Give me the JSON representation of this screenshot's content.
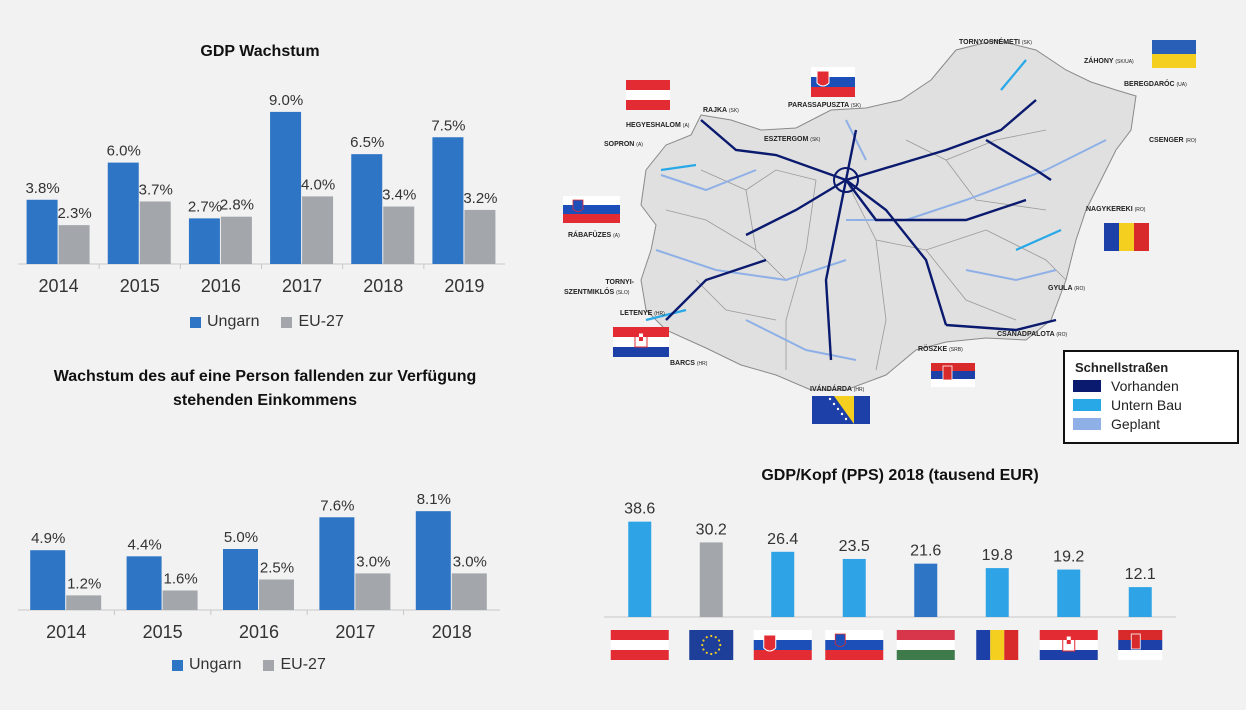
{
  "colors": {
    "ungarn": "#2e75c6",
    "eu": "#a3a7ab",
    "light": "#2ea3e6",
    "road_existing": "#0a1a6e",
    "road_building": "#29a8e8",
    "road_planned": "#8fb0e6"
  },
  "chart_data": [
    {
      "type": "bar",
      "title": "GDP Wachstum",
      "categories": [
        "2014",
        "2015",
        "2016",
        "2017",
        "2018",
        "2019"
      ],
      "series": [
        {
          "name": "Ungarn",
          "values": [
            3.8,
            6.0,
            2.7,
            9.0,
            6.5,
            7.5
          ],
          "labels": [
            "3.8%",
            "6.0%",
            "2.7%",
            "9.0%",
            "6.5%",
            "7.5%"
          ]
        },
        {
          "name": "EU-27",
          "values": [
            2.3,
            3.7,
            2.8,
            4.0,
            3.4,
            3.2
          ],
          "labels": [
            "2.3%",
            "3.7%",
            "2.8%",
            "4.0%",
            "3.4%",
            "3.2%"
          ]
        }
      ],
      "legend": "bottom"
    },
    {
      "type": "bar",
      "title": "Wachstum des auf eine Person fallenden zur Verfügung stehenden Einkommens",
      "categories": [
        "2014",
        "2015",
        "2016",
        "2017",
        "2018"
      ],
      "series": [
        {
          "name": "Ungarn",
          "values": [
            4.9,
            4.4,
            5.0,
            7.6,
            8.1
          ],
          "labels": [
            "4.9%",
            "4.4%",
            "5.0%",
            "7.6%",
            "8.1%"
          ]
        },
        {
          "name": "EU-27",
          "values": [
            1.2,
            1.6,
            2.5,
            3.0,
            3.0
          ],
          "labels": [
            "1.2%",
            "1.6%",
            "2.5%",
            "3.0%",
            "3.0%"
          ]
        }
      ],
      "legend": "bottom"
    },
    {
      "type": "bar",
      "title": "GDP/Kopf (PPS) 2018 (tausend EUR)",
      "categories": [
        "AT",
        "EU",
        "SK",
        "SI",
        "HU",
        "RO",
        "HR",
        "RS"
      ],
      "values": [
        38.6,
        30.2,
        26.4,
        23.5,
        21.6,
        19.8,
        19.2,
        12.1
      ],
      "labels": [
        "38.6",
        "30.2",
        "26.4",
        "23.5",
        "21.6",
        "19.8",
        "19.2",
        "12.1"
      ],
      "category_icons": [
        "flag-austria",
        "flag-eu",
        "flag-slovakia",
        "flag-slovenia",
        "flag-hungary",
        "flag-romania",
        "flag-croatia",
        "flag-serbia"
      ],
      "bar_colors": [
        "light",
        "eu",
        "light",
        "light",
        "ungarn",
        "light",
        "light",
        "light"
      ]
    }
  ],
  "map": {
    "legend_title": "Schnellstraßen",
    "legend_items": [
      "Vorhanden",
      "Untern Bau",
      "Geplant"
    ],
    "places": [
      {
        "name": "TORNYOSNÉMETI",
        "code": "(SK)"
      },
      {
        "name": "ZÁHONY",
        "code": "(SK/UA)"
      },
      {
        "name": "BEREGDARÓC",
        "code": "(UA)"
      },
      {
        "name": "RAJKA",
        "code": "(SK)"
      },
      {
        "name": "PARASSAPUSZTA",
        "code": "(SK)"
      },
      {
        "name": "HEGYESHALOM",
        "code": "(A)"
      },
      {
        "name": "ESZTERGOM",
        "code": "(SK)"
      },
      {
        "name": "SOPRON",
        "code": "(A)"
      },
      {
        "name": "CSENGER",
        "code": "(RO)"
      },
      {
        "name": "NAGYKEREKI",
        "code": "(RO)"
      },
      {
        "name": "RÁBAFÜZES",
        "code": "(A)"
      },
      {
        "name": "TORNYI-",
        "code": ""
      },
      {
        "name": "SZENTMIKLÓS",
        "code": "(SLO)"
      },
      {
        "name": "GYULA",
        "code": "(RO)"
      },
      {
        "name": "LETENYE",
        "code": "(HR)"
      },
      {
        "name": "CSANÁDPALOTA",
        "code": "(RO)"
      },
      {
        "name": "RÖSZKE",
        "code": "(SRB)"
      },
      {
        "name": "BARCS",
        "code": "(HR)"
      },
      {
        "name": "IVÁNDÁRDA",
        "code": "(HR)"
      }
    ]
  }
}
